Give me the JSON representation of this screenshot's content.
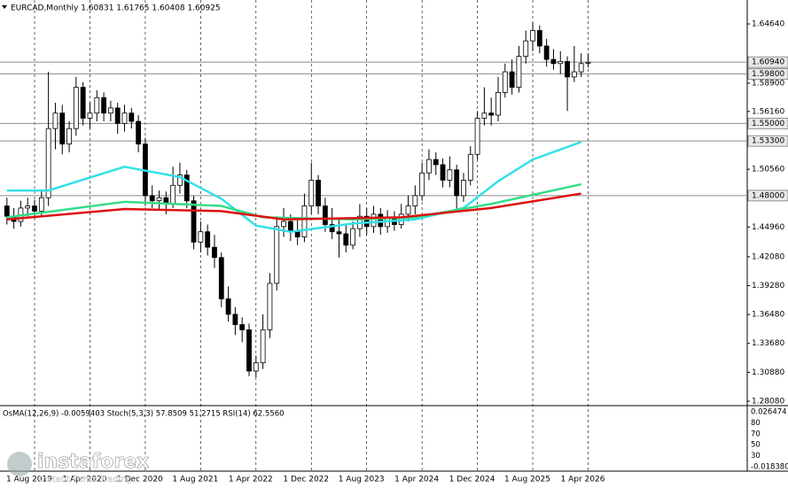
{
  "chart_data": {
    "type": "candlestick",
    "title": "EURCAD,Monthly  1.60831 1.61765 1.60408 1.60925",
    "xlim": [
      -1,
      107
    ],
    "ylim": [
      1.2765,
      1.6696
    ],
    "xticks": [
      {
        "value": 4,
        "label": "1 Aug 2019"
      },
      {
        "value": 12,
        "label": "1 Apr 2020"
      },
      {
        "value": 20,
        "label": "1 Dec 2020"
      },
      {
        "value": 28,
        "label": "1 Aug 2021"
      },
      {
        "value": 36,
        "label": "1 Apr 2022"
      },
      {
        "value": 44,
        "label": "1 Dec 2022"
      },
      {
        "value": 52,
        "label": "1 Aug 2023"
      },
      {
        "value": 60,
        "label": "1 Apr 2024"
      },
      {
        "value": 68,
        "label": "1 Dec 2024"
      },
      {
        "value": 76,
        "label": "1 Aug 2025"
      },
      {
        "value": 84,
        "label": "1 Apr 2026"
      }
    ],
    "yticks": [
      {
        "value": 1.6464,
        "label": "1.64640"
      },
      {
        "value": 1.589,
        "label": "1.58900"
      },
      {
        "value": 1.5616,
        "label": "1.56160"
      },
      {
        "value": 1.5056,
        "label": "1.50560"
      },
      {
        "value": 1.4496,
        "label": "1.44960"
      },
      {
        "value": 1.4208,
        "label": "1.42080"
      },
      {
        "value": 1.3928,
        "label": "1.39280"
      },
      {
        "value": 1.3648,
        "label": "1.36480"
      },
      {
        "value": 1.3368,
        "label": "1.33680"
      },
      {
        "value": 1.3088,
        "label": "1.30880"
      },
      {
        "value": 1.2808,
        "label": "1.28080"
      }
    ],
    "levels": [
      {
        "value": 1.6094,
        "label": "1.60940"
      },
      {
        "value": 1.598,
        "label": "1.59800"
      },
      {
        "value": 1.55,
        "label": "1.55000"
      },
      {
        "value": 1.533,
        "label": "1.53300"
      },
      {
        "value": 1.48,
        "label": "1.48000"
      }
    ],
    "candles": [
      [
        1.47,
        1.478,
        1.452,
        1.46
      ],
      [
        1.46,
        1.468,
        1.448,
        1.455
      ],
      [
        1.455,
        1.475,
        1.45,
        1.468
      ],
      [
        1.468,
        1.478,
        1.46,
        1.47
      ],
      [
        1.47,
        1.476,
        1.458,
        1.465
      ],
      [
        1.465,
        1.485,
        1.46,
        1.478
      ],
      [
        1.478,
        1.6,
        1.47,
        1.545
      ],
      [
        1.545,
        1.57,
        1.525,
        1.56
      ],
      [
        1.56,
        1.568,
        1.52,
        1.53
      ],
      [
        1.53,
        1.552,
        1.522,
        1.545
      ],
      [
        1.545,
        1.595,
        1.538,
        1.585
      ],
      [
        1.585,
        1.59,
        1.548,
        1.555
      ],
      [
        1.555,
        1.57,
        1.545,
        1.56
      ],
      [
        1.56,
        1.582,
        1.552,
        1.575
      ],
      [
        1.575,
        1.58,
        1.552,
        1.56
      ],
      [
        1.56,
        1.572,
        1.552,
        1.565
      ],
      [
        1.565,
        1.57,
        1.54,
        1.55
      ],
      [
        1.55,
        1.568,
        1.542,
        1.56
      ],
      [
        1.56,
        1.565,
        1.545,
        1.552
      ],
      [
        1.552,
        1.558,
        1.522,
        1.53
      ],
      [
        1.53,
        1.536,
        1.47,
        1.48
      ],
      [
        1.48,
        1.49,
        1.468,
        1.475
      ],
      [
        1.475,
        1.485,
        1.466,
        1.478
      ],
      [
        1.478,
        1.484,
        1.462,
        1.472
      ],
      [
        1.472,
        1.508,
        1.468,
        1.49
      ],
      [
        1.49,
        1.512,
        1.482,
        1.5
      ],
      [
        1.5,
        1.505,
        1.468,
        1.475
      ],
      [
        1.475,
        1.48,
        1.428,
        1.435
      ],
      [
        1.435,
        1.455,
        1.425,
        1.445
      ],
      [
        1.445,
        1.452,
        1.422,
        1.43
      ],
      [
        1.43,
        1.442,
        1.41,
        1.42
      ],
      [
        1.42,
        1.425,
        1.372,
        1.38
      ],
      [
        1.38,
        1.392,
        1.358,
        1.365
      ],
      [
        1.365,
        1.372,
        1.345,
        1.355
      ],
      [
        1.355,
        1.362,
        1.338,
        1.35
      ],
      [
        1.35,
        1.356,
        1.305,
        1.31
      ],
      [
        1.31,
        1.325,
        1.304,
        1.318
      ],
      [
        1.318,
        1.365,
        1.312,
        1.35
      ],
      [
        1.35,
        1.405,
        1.342,
        1.395
      ],
      [
        1.395,
        1.46,
        1.388,
        1.45
      ],
      [
        1.45,
        1.468,
        1.44,
        1.455
      ],
      [
        1.455,
        1.462,
        1.436,
        1.445
      ],
      [
        1.445,
        1.458,
        1.432,
        1.44
      ],
      [
        1.44,
        1.482,
        1.435,
        1.47
      ],
      [
        1.47,
        1.512,
        1.462,
        1.495
      ],
      [
        1.495,
        1.5,
        1.462,
        1.47
      ],
      [
        1.47,
        1.478,
        1.445,
        1.452
      ],
      [
        1.452,
        1.468,
        1.438,
        1.445
      ],
      [
        1.445,
        1.458,
        1.42,
        1.443
      ],
      [
        1.443,
        1.452,
        1.425,
        1.432
      ],
      [
        1.432,
        1.455,
        1.428,
        1.448
      ],
      [
        1.448,
        1.472,
        1.44,
        1.46
      ],
      [
        1.46,
        1.468,
        1.442,
        1.45
      ],
      [
        1.45,
        1.47,
        1.444,
        1.462
      ],
      [
        1.462,
        1.468,
        1.442,
        1.45
      ],
      [
        1.45,
        1.466,
        1.444,
        1.458
      ],
      [
        1.458,
        1.465,
        1.446,
        1.452
      ],
      [
        1.452,
        1.472,
        1.448,
        1.462
      ],
      [
        1.462,
        1.48,
        1.455,
        1.47
      ],
      [
        1.47,
        1.49,
        1.462,
        1.48
      ],
      [
        1.48,
        1.512,
        1.475,
        1.502
      ],
      [
        1.502,
        1.525,
        1.495,
        1.515
      ],
      [
        1.515,
        1.522,
        1.5,
        1.51
      ],
      [
        1.51,
        1.516,
        1.488,
        1.495
      ],
      [
        1.495,
        1.518,
        1.488,
        1.505
      ],
      [
        1.505,
        1.51,
        1.465,
        1.48
      ],
      [
        1.48,
        1.502,
        1.474,
        1.495
      ],
      [
        1.495,
        1.528,
        1.49,
        1.52
      ],
      [
        1.52,
        1.562,
        1.515,
        1.555
      ],
      [
        1.555,
        1.585,
        1.548,
        1.56
      ],
      [
        1.56,
        1.575,
        1.548,
        1.558
      ],
      [
        1.558,
        1.595,
        1.552,
        1.58
      ],
      [
        1.58,
        1.608,
        1.575,
        1.6
      ],
      [
        1.6,
        1.612,
        1.578,
        1.585
      ],
      [
        1.585,
        1.625,
        1.58,
        1.615
      ],
      [
        1.615,
        1.64,
        1.608,
        1.63
      ],
      [
        1.63,
        1.648,
        1.62,
        1.64
      ],
      [
        1.64,
        1.645,
        1.618,
        1.625
      ],
      [
        1.625,
        1.632,
        1.605,
        1.612
      ],
      [
        1.612,
        1.622,
        1.602,
        1.608
      ],
      [
        1.608,
        1.62,
        1.598,
        1.61
      ],
      [
        1.61,
        1.615,
        1.562,
        1.595
      ],
      [
        1.595,
        1.625,
        1.59,
        1.6
      ],
      [
        1.6,
        1.618,
        1.595,
        1.608
      ],
      [
        1.60831,
        1.61765,
        1.60408,
        1.60925
      ]
    ],
    "moving_averages": [
      {
        "color": "#33e0e8",
        "x": [
          0,
          6,
          17,
          25,
          31,
          36,
          41,
          50,
          59,
          66,
          71,
          76,
          83
        ],
        "values": [
          1.485,
          1.485,
          1.508,
          1.498,
          1.477,
          1.451,
          1.445,
          1.453,
          1.457,
          1.468,
          1.494,
          1.515,
          1.532
        ]
      },
      {
        "color": "#33dd88",
        "x": [
          0,
          17,
          31,
          37,
          50,
          59,
          70,
          83
        ],
        "values": [
          1.459,
          1.474,
          1.47,
          1.459,
          1.457,
          1.459,
          1.472,
          1.491
        ]
      },
      {
        "color": "#dd1111",
        "x": [
          0,
          17,
          31,
          40,
          57,
          70,
          83
        ],
        "values": [
          1.457,
          1.467,
          1.465,
          1.457,
          1.459,
          1.468,
          1.482
        ]
      }
    ],
    "indicator_title": "OsMA(12,26,9) -0.0059403  Stoch(5,3,3) 57.8509 51.2715  RSI(14) 62.5560",
    "indicator_scale": [
      "0.026474",
      "80",
      "70",
      "50",
      "30",
      "-0.018380"
    ],
    "watermark": "instaforex",
    "watermark_sub": "Instant Forex Trading"
  }
}
